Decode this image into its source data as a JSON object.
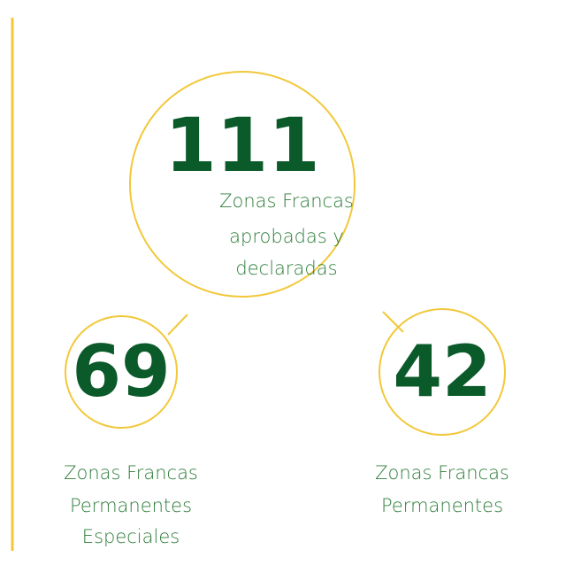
{
  "nodes": [
    {
      "value": 111,
      "label": [
        "Zonas Francas",
        "aprobadas y",
        "declaradas"
      ]
    },
    {
      "value": 69,
      "label": [
        "Zonas Francas",
        "Permanentes",
        "Especiales"
      ]
    },
    {
      "value": 42,
      "label": [
        "Zonas Francas",
        "Permanentes"
      ]
    }
  ]
}
